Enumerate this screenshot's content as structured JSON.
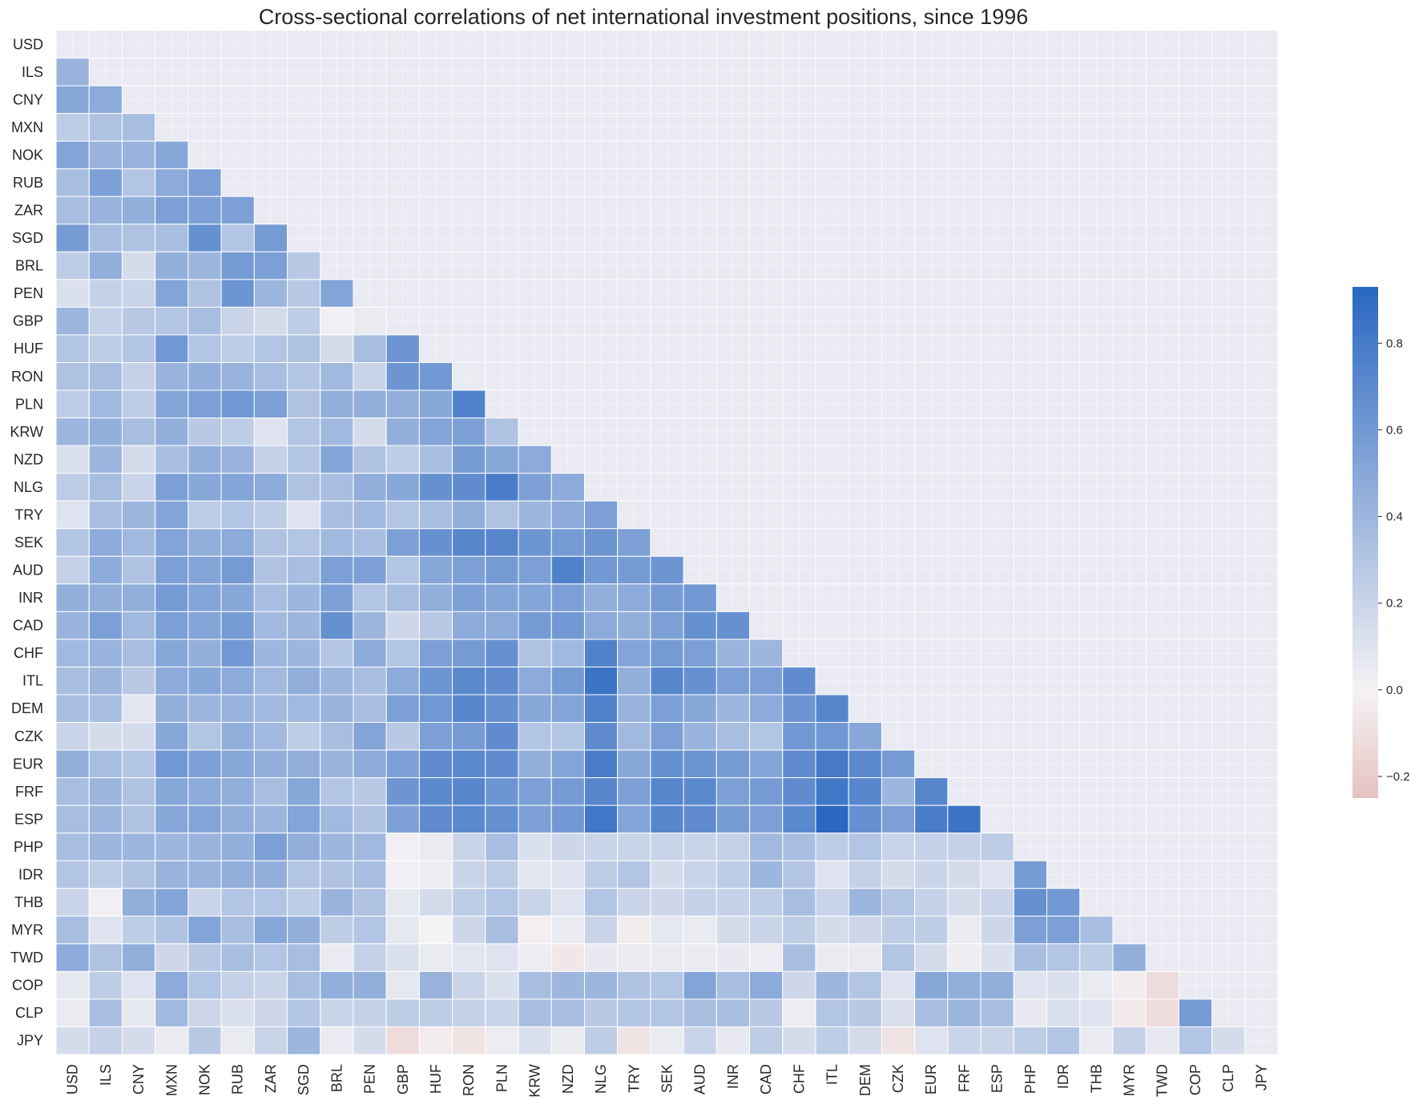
{
  "chart_data": {
    "type": "heatmap",
    "title": "Cross-sectional correlations of net international investment positions, since 1996",
    "labels": [
      "USD",
      "ILS",
      "CNY",
      "MXN",
      "NOK",
      "RUB",
      "ZAR",
      "SGD",
      "BRL",
      "PEN",
      "GBP",
      "HUF",
      "RON",
      "PLN",
      "KRW",
      "NZD",
      "NLG",
      "TRY",
      "SEK",
      "AUD",
      "INR",
      "CAD",
      "CHF",
      "ITL",
      "DEM",
      "CZK",
      "EUR",
      "FRF",
      "ESP",
      "PHP",
      "IDR",
      "THB",
      "MYR",
      "TWD",
      "COP",
      "CLP",
      "JPY"
    ],
    "mask": "upper-triangle-and-diagonal",
    "colorbar": {
      "vmin": -0.25,
      "vmax": 0.93,
      "ticks": [
        -0.2,
        0.0,
        0.2,
        0.4,
        0.6,
        0.8
      ],
      "tick_labels": [
        "−0.2",
        "0.0",
        "0.2",
        "0.4",
        "0.6",
        "0.8"
      ],
      "negative_color": "#e6c3c1",
      "zero_color": "#f5f2f4",
      "positive_color": "#2967c1"
    },
    "background_color": "#eaeaf2",
    "grid": true,
    "rows": [
      [],
      [
        0.42
      ],
      [
        0.5,
        0.48
      ],
      [
        0.25,
        0.32,
        0.35
      ],
      [
        0.52,
        0.42,
        0.42,
        0.5
      ],
      [
        0.35,
        0.55,
        0.3,
        0.48,
        0.55
      ],
      [
        0.35,
        0.42,
        0.45,
        0.55,
        0.55,
        0.55
      ],
      [
        0.58,
        0.35,
        0.32,
        0.35,
        0.65,
        0.3,
        0.58
      ],
      [
        0.25,
        0.45,
        0.15,
        0.45,
        0.4,
        0.58,
        0.55,
        0.28
      ],
      [
        0.12,
        0.22,
        0.2,
        0.52,
        0.32,
        0.62,
        0.4,
        0.28,
        0.52
      ],
      [
        0.4,
        0.22,
        0.28,
        0.3,
        0.35,
        0.2,
        0.15,
        0.25,
        0.02,
        0.05
      ],
      [
        0.3,
        0.25,
        0.3,
        0.6,
        0.3,
        0.25,
        0.3,
        0.32,
        0.15,
        0.35,
        0.62
      ],
      [
        0.32,
        0.35,
        0.22,
        0.42,
        0.45,
        0.42,
        0.35,
        0.3,
        0.38,
        0.2,
        0.62,
        0.6
      ],
      [
        0.25,
        0.38,
        0.25,
        0.52,
        0.55,
        0.6,
        0.55,
        0.32,
        0.45,
        0.45,
        0.45,
        0.5,
        0.75
      ],
      [
        0.4,
        0.45,
        0.35,
        0.45,
        0.28,
        0.25,
        0.1,
        0.3,
        0.38,
        0.15,
        0.45,
        0.52,
        0.55,
        0.32
      ],
      [
        0.12,
        0.4,
        0.15,
        0.35,
        0.45,
        0.42,
        0.22,
        0.3,
        0.52,
        0.32,
        0.25,
        0.35,
        0.58,
        0.5,
        0.48
      ],
      [
        0.25,
        0.35,
        0.2,
        0.55,
        0.5,
        0.52,
        0.48,
        0.32,
        0.35,
        0.45,
        0.5,
        0.65,
        0.68,
        0.78,
        0.55,
        0.48
      ],
      [
        0.1,
        0.35,
        0.4,
        0.52,
        0.25,
        0.3,
        0.25,
        0.1,
        0.35,
        0.38,
        0.3,
        0.35,
        0.45,
        0.32,
        0.4,
        0.48,
        0.55
      ],
      [
        0.3,
        0.48,
        0.38,
        0.52,
        0.45,
        0.48,
        0.32,
        0.3,
        0.38,
        0.35,
        0.55,
        0.65,
        0.72,
        0.72,
        0.62,
        0.58,
        0.62,
        0.55
      ],
      [
        0.22,
        0.48,
        0.32,
        0.55,
        0.52,
        0.58,
        0.32,
        0.35,
        0.55,
        0.55,
        0.3,
        0.5,
        0.55,
        0.58,
        0.55,
        0.75,
        0.6,
        0.58,
        0.62
      ],
      [
        0.45,
        0.45,
        0.45,
        0.58,
        0.52,
        0.5,
        0.35,
        0.4,
        0.55,
        0.3,
        0.35,
        0.45,
        0.55,
        0.52,
        0.52,
        0.55,
        0.45,
        0.48,
        0.58,
        0.6
      ],
      [
        0.42,
        0.55,
        0.38,
        0.55,
        0.52,
        0.58,
        0.38,
        0.4,
        0.65,
        0.4,
        0.18,
        0.28,
        0.48,
        0.48,
        0.58,
        0.6,
        0.48,
        0.45,
        0.55,
        0.65,
        0.65
      ],
      [
        0.38,
        0.42,
        0.35,
        0.5,
        0.45,
        0.6,
        0.4,
        0.4,
        0.3,
        0.48,
        0.3,
        0.55,
        0.58,
        0.65,
        0.32,
        0.38,
        0.75,
        0.52,
        0.58,
        0.55,
        0.42,
        0.4
      ],
      [
        0.35,
        0.4,
        0.28,
        0.48,
        0.5,
        0.48,
        0.38,
        0.45,
        0.4,
        0.35,
        0.48,
        0.62,
        0.7,
        0.68,
        0.48,
        0.58,
        0.85,
        0.45,
        0.72,
        0.65,
        0.55,
        0.55,
        0.68
      ],
      [
        0.35,
        0.35,
        0.08,
        0.45,
        0.4,
        0.42,
        0.38,
        0.38,
        0.42,
        0.35,
        0.55,
        0.6,
        0.72,
        0.65,
        0.5,
        0.52,
        0.75,
        0.42,
        0.55,
        0.5,
        0.4,
        0.48,
        0.62,
        0.72
      ],
      [
        0.2,
        0.15,
        0.15,
        0.5,
        0.3,
        0.45,
        0.38,
        0.25,
        0.35,
        0.52,
        0.28,
        0.55,
        0.58,
        0.68,
        0.3,
        0.3,
        0.68,
        0.38,
        0.55,
        0.42,
        0.35,
        0.3,
        0.6,
        0.6,
        0.5
      ],
      [
        0.45,
        0.35,
        0.3,
        0.6,
        0.55,
        0.5,
        0.45,
        0.45,
        0.42,
        0.48,
        0.55,
        0.68,
        0.7,
        0.68,
        0.45,
        0.52,
        0.78,
        0.5,
        0.65,
        0.62,
        0.58,
        0.52,
        0.68,
        0.8,
        0.7,
        0.58
      ],
      [
        0.35,
        0.4,
        0.32,
        0.5,
        0.48,
        0.45,
        0.35,
        0.5,
        0.3,
        0.28,
        0.62,
        0.7,
        0.72,
        0.62,
        0.55,
        0.58,
        0.72,
        0.55,
        0.72,
        0.7,
        0.55,
        0.58,
        0.68,
        0.82,
        0.72,
        0.4,
        0.72
      ],
      [
        0.35,
        0.4,
        0.32,
        0.5,
        0.52,
        0.45,
        0.4,
        0.52,
        0.38,
        0.32,
        0.55,
        0.68,
        0.7,
        0.65,
        0.55,
        0.6,
        0.82,
        0.52,
        0.72,
        0.68,
        0.58,
        0.55,
        0.7,
        0.92,
        0.65,
        0.55,
        0.78,
        0.85
      ],
      [
        0.35,
        0.4,
        0.4,
        0.4,
        0.42,
        0.45,
        0.55,
        0.45,
        0.4,
        0.38,
        0.02,
        0.05,
        0.2,
        0.35,
        0.12,
        0.18,
        0.2,
        0.2,
        0.2,
        0.2,
        0.22,
        0.38,
        0.35,
        0.25,
        0.3,
        0.2,
        0.22,
        0.22,
        0.25
      ],
      [
        0.3,
        0.25,
        0.32,
        0.42,
        0.42,
        0.45,
        0.45,
        0.3,
        0.32,
        0.35,
        0.02,
        0.03,
        0.2,
        0.25,
        0.08,
        0.1,
        0.25,
        0.3,
        0.15,
        0.2,
        0.25,
        0.4,
        0.3,
        0.1,
        0.22,
        0.15,
        0.2,
        0.15,
        0.1,
        0.58
      ],
      [
        0.2,
        0.02,
        0.45,
        0.52,
        0.2,
        0.3,
        0.3,
        0.25,
        0.42,
        0.32,
        0.07,
        0.15,
        0.25,
        0.3,
        0.2,
        0.1,
        0.3,
        0.2,
        0.18,
        0.22,
        0.22,
        0.25,
        0.35,
        0.2,
        0.4,
        0.3,
        0.22,
        0.15,
        0.2,
        0.65,
        0.6
      ],
      [
        0.35,
        0.1,
        0.25,
        0.32,
        0.52,
        0.35,
        0.5,
        0.45,
        0.25,
        0.3,
        0.07,
        0.0,
        0.18,
        0.35,
        -0.02,
        0.05,
        0.2,
        -0.03,
        0.07,
        0.05,
        0.15,
        0.2,
        0.25,
        0.15,
        0.18,
        0.25,
        0.25,
        0.05,
        0.18,
        0.55,
        0.55,
        0.35
      ],
      [
        0.48,
        0.32,
        0.45,
        0.18,
        0.28,
        0.35,
        0.3,
        0.35,
        0.05,
        0.22,
        0.12,
        0.05,
        0.08,
        0.1,
        0.04,
        -0.06,
        0.06,
        0.05,
        0.05,
        0.05,
        0.06,
        0.04,
        0.35,
        0.05,
        0.05,
        0.3,
        0.15,
        0.03,
        0.12,
        0.35,
        0.3,
        0.25,
        0.45
      ],
      [
        0.07,
        0.25,
        0.1,
        0.48,
        0.3,
        0.22,
        0.2,
        0.35,
        0.45,
        0.45,
        0.07,
        0.42,
        0.2,
        0.12,
        0.35,
        0.4,
        0.4,
        0.32,
        0.3,
        0.52,
        0.35,
        0.48,
        0.18,
        0.4,
        0.3,
        0.1,
        0.5,
        0.45,
        0.45,
        0.1,
        0.12,
        0.05,
        -0.03,
        -0.12
      ],
      [
        0.05,
        0.35,
        0.07,
        0.38,
        0.18,
        0.12,
        0.18,
        0.3,
        0.2,
        0.22,
        0.25,
        0.25,
        0.22,
        0.2,
        0.35,
        0.35,
        0.28,
        0.3,
        0.3,
        0.35,
        0.35,
        0.28,
        0.04,
        0.3,
        0.28,
        0.12,
        0.35,
        0.4,
        0.35,
        0.06,
        0.12,
        0.1,
        -0.05,
        -0.12,
        0.58
      ],
      [
        0.15,
        0.22,
        0.15,
        0.05,
        0.28,
        0.05,
        0.2,
        0.4,
        0.05,
        0.15,
        -0.12,
        -0.03,
        -0.08,
        0.04,
        0.12,
        0.05,
        0.25,
        -0.08,
        0.05,
        0.2,
        0.06,
        0.25,
        0.15,
        0.25,
        0.15,
        -0.08,
        0.1,
        0.2,
        0.2,
        0.25,
        0.3,
        0.05,
        0.22,
        0.06,
        0.3,
        0.15
      ]
    ]
  }
}
